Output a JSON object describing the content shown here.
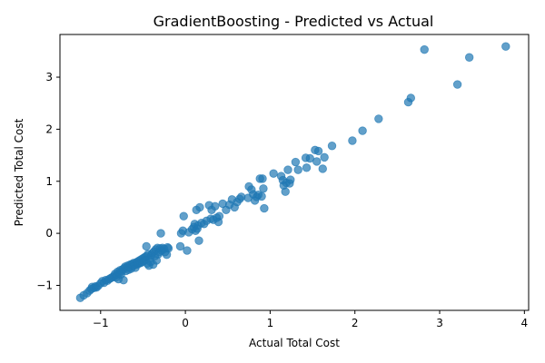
{
  "chart_data": {
    "type": "scatter",
    "title": "GradientBoosting - Predicted vs Actual",
    "xlabel": "Actual Total Cost",
    "ylabel": "Predicted Total Cost",
    "xlim": [
      -1.48,
      4.05
    ],
    "ylim": [
      -1.48,
      3.82
    ],
    "xticks": [
      -1,
      0,
      1,
      2,
      3,
      4
    ],
    "yticks": [
      -1,
      0,
      1,
      2,
      3
    ],
    "grid": false,
    "marker_color": "#1f77b4",
    "marker_alpha": 0.7,
    "series": [
      {
        "points": [
          [
            -1.24,
            -1.24
          ],
          [
            -1.2,
            -1.19
          ],
          [
            -1.16,
            -1.15
          ],
          [
            -1.13,
            -1.1
          ],
          [
            -1.11,
            -1.07
          ],
          [
            -1.1,
            -1.03
          ],
          [
            -1.08,
            -1.05
          ],
          [
            -1.06,
            -1.02
          ],
          [
            -1.05,
            -1.04
          ],
          [
            -1.03,
            -1.01
          ],
          [
            -1.0,
            -0.96
          ],
          [
            -0.98,
            -0.92
          ],
          [
            -0.96,
            -0.95
          ],
          [
            -0.94,
            -0.9
          ],
          [
            -0.92,
            -0.91
          ],
          [
            -0.9,
            -0.88
          ],
          [
            -0.88,
            -0.86
          ],
          [
            -0.86,
            -0.84
          ],
          [
            -0.84,
            -0.82
          ],
          [
            -0.83,
            -0.78
          ],
          [
            -0.82,
            -0.85
          ],
          [
            -0.81,
            -0.8
          ],
          [
            -0.8,
            -0.74
          ],
          [
            -0.79,
            -0.88
          ],
          [
            -0.78,
            -0.76
          ],
          [
            -0.77,
            -0.71
          ],
          [
            -0.76,
            -0.79
          ],
          [
            -0.75,
            -0.73
          ],
          [
            -0.74,
            -0.69
          ],
          [
            -0.73,
            -0.9
          ],
          [
            -0.72,
            -0.67
          ],
          [
            -0.71,
            -0.64
          ],
          [
            -0.7,
            -0.72
          ],
          [
            -0.69,
            -0.66
          ],
          [
            -0.68,
            -0.62
          ],
          [
            -0.67,
            -0.7
          ],
          [
            -0.66,
            -0.65
          ],
          [
            -0.65,
            -0.6
          ],
          [
            -0.64,
            -0.68
          ],
          [
            -0.63,
            -0.59
          ],
          [
            -0.62,
            -0.63
          ],
          [
            -0.61,
            -0.57
          ],
          [
            -0.6,
            -0.61
          ],
          [
            -0.59,
            -0.66
          ],
          [
            -0.58,
            -0.56
          ],
          [
            -0.57,
            -0.6
          ],
          [
            -0.56,
            -0.54
          ],
          [
            -0.55,
            -0.58
          ],
          [
            -0.54,
            -0.52
          ],
          [
            -0.53,
            -0.57
          ],
          [
            -0.52,
            -0.5
          ],
          [
            -0.51,
            -0.55
          ],
          [
            -0.5,
            -0.48
          ],
          [
            -0.49,
            -0.53
          ],
          [
            -0.48,
            -0.46
          ],
          [
            -0.47,
            -0.51
          ],
          [
            -0.46,
            -0.44
          ],
          [
            -0.45,
            -0.58
          ],
          [
            -0.44,
            -0.4
          ],
          [
            -0.43,
            -0.62
          ],
          [
            -0.46,
            -0.25
          ],
          [
            -0.42,
            -0.48
          ],
          [
            -0.41,
            -0.55
          ],
          [
            -0.4,
            -0.42
          ],
          [
            -0.39,
            -0.38
          ],
          [
            -0.38,
            -0.6
          ],
          [
            -0.37,
            -0.35
          ],
          [
            -0.36,
            -0.44
          ],
          [
            -0.35,
            -0.31
          ],
          [
            -0.34,
            -0.52
          ],
          [
            -0.33,
            -0.28
          ],
          [
            -0.32,
            -0.4
          ],
          [
            -0.31,
            -0.36
          ],
          [
            -0.3,
            -0.29
          ],
          [
            -0.29,
            0.0
          ],
          [
            -0.28,
            -0.33
          ],
          [
            -0.27,
            -0.28
          ],
          [
            -0.25,
            -0.3
          ],
          [
            -0.24,
            -0.36
          ],
          [
            -0.22,
            -0.41
          ],
          [
            -0.21,
            -0.27
          ],
          [
            -0.2,
            -0.29
          ],
          [
            -0.06,
            -0.25
          ],
          [
            -0.05,
            0.0
          ],
          [
            -0.03,
            0.05
          ],
          [
            -0.02,
            0.33
          ],
          [
            0.02,
            -0.33
          ],
          [
            0.04,
            0.02
          ],
          [
            0.08,
            0.08
          ],
          [
            0.1,
            0.12
          ],
          [
            0.11,
            0.18
          ],
          [
            0.12,
            0.05
          ],
          [
            0.13,
            0.45
          ],
          [
            0.14,
            0.09
          ],
          [
            0.15,
            0.15
          ],
          [
            0.16,
            -0.14
          ],
          [
            0.17,
            0.5
          ],
          [
            0.19,
            0.2
          ],
          [
            0.22,
            0.18
          ],
          [
            0.25,
            0.24
          ],
          [
            0.28,
            0.54
          ],
          [
            0.3,
            0.28
          ],
          [
            0.31,
            0.45
          ],
          [
            0.33,
            0.26
          ],
          [
            0.35,
            0.52
          ],
          [
            0.37,
            0.3
          ],
          [
            0.39,
            0.22
          ],
          [
            0.4,
            0.33
          ],
          [
            0.44,
            0.57
          ],
          [
            0.48,
            0.45
          ],
          [
            0.52,
            0.55
          ],
          [
            0.55,
            0.65
          ],
          [
            0.58,
            0.5
          ],
          [
            0.61,
            0.6
          ],
          [
            0.64,
            0.66
          ],
          [
            0.66,
            0.7
          ],
          [
            0.74,
            0.68
          ],
          [
            0.75,
            0.9
          ],
          [
            0.78,
            0.84
          ],
          [
            0.8,
            0.75
          ],
          [
            0.82,
            0.63
          ],
          [
            0.84,
            0.7
          ],
          [
            0.86,
            0.74
          ],
          [
            0.88,
            1.05
          ],
          [
            0.9,
            0.71
          ],
          [
            0.91,
            1.05
          ],
          [
            0.92,
            0.86
          ],
          [
            0.93,
            0.48
          ],
          [
            1.04,
            1.15
          ],
          [
            1.13,
            1.1
          ],
          [
            1.15,
            1.02
          ],
          [
            1.16,
            0.92
          ],
          [
            1.18,
            0.8
          ],
          [
            1.19,
            0.97
          ],
          [
            1.21,
            1.22
          ],
          [
            1.23,
            0.96
          ],
          [
            1.24,
            1.03
          ],
          [
            1.3,
            1.37
          ],
          [
            1.33,
            1.22
          ],
          [
            1.42,
            1.45
          ],
          [
            1.43,
            1.26
          ],
          [
            1.47,
            1.44
          ],
          [
            1.53,
            1.6
          ],
          [
            1.55,
            1.38
          ],
          [
            1.57,
            1.58
          ],
          [
            1.62,
            1.24
          ],
          [
            1.64,
            1.46
          ],
          [
            1.73,
            1.68
          ],
          [
            1.97,
            1.78
          ],
          [
            2.09,
            1.97
          ],
          [
            2.28,
            2.2
          ],
          [
            2.63,
            2.52
          ],
          [
            2.66,
            2.6
          ],
          [
            2.82,
            3.53
          ],
          [
            3.21,
            2.86
          ],
          [
            3.35,
            3.38
          ],
          [
            3.78,
            3.59
          ]
        ]
      }
    ]
  }
}
